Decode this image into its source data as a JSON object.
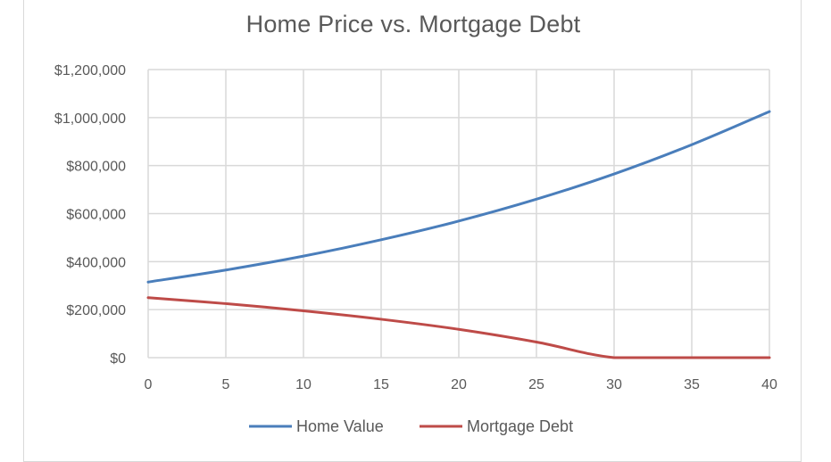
{
  "chart_data": {
    "type": "line",
    "title": "Home Price vs. Mortgage Debt",
    "xlabel": "",
    "ylabel": "",
    "x": [
      0,
      5,
      10,
      15,
      20,
      25,
      30,
      35,
      40
    ],
    "xticks": [
      "0",
      "5",
      "10",
      "15",
      "20",
      "25",
      "30",
      "35",
      "40"
    ],
    "yticks": [
      "$0",
      "$200,000",
      "$400,000",
      "$600,000",
      "$800,000",
      "$1,000,000",
      "$1,200,000"
    ],
    "ylim": [
      0,
      1200000
    ],
    "xlim": [
      0,
      40
    ],
    "grid": true,
    "legend": "bottom",
    "series": [
      {
        "name": "Home Value",
        "color": "#4a7ebb",
        "values": [
          315000,
          365000,
          423000,
          491000,
          569000,
          660000,
          765000,
          887000,
          1025000
        ]
      },
      {
        "name": "Mortgage Debt",
        "color": "#be4b48",
        "values": [
          250000,
          225000,
          195000,
          160000,
          118000,
          65000,
          0,
          0,
          0
        ]
      }
    ]
  }
}
